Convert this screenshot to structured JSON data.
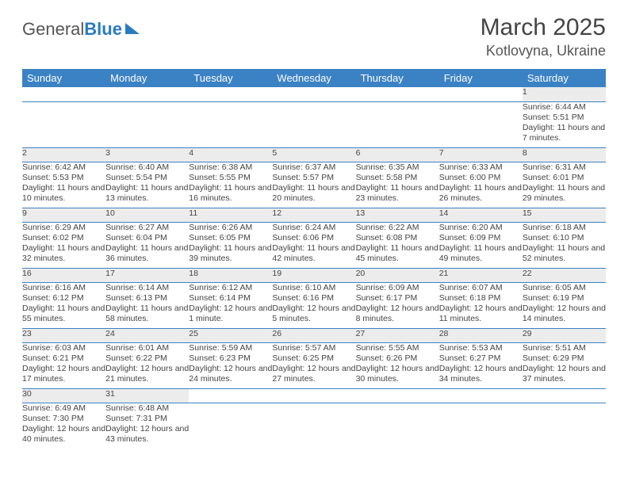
{
  "logo": {
    "text1": "General",
    "text2": "Blue"
  },
  "title": "March 2025",
  "location": "Kotlovyna, Ukraine",
  "headers": [
    "Sunday",
    "Monday",
    "Tuesday",
    "Wednesday",
    "Thursday",
    "Friday",
    "Saturday"
  ],
  "colors": {
    "header_bg": "#3b82c4",
    "header_fg": "#ffffff",
    "daynum_bg": "#ececec",
    "border": "#3b82c4",
    "text": "#444444",
    "logo_blue": "#2a7bbf"
  },
  "weeks": [
    [
      null,
      null,
      null,
      null,
      null,
      null,
      {
        "n": "1",
        "sr": "6:44 AM",
        "ss": "5:51 PM",
        "dl": "11 hours and 7 minutes."
      }
    ],
    [
      {
        "n": "2",
        "sr": "6:42 AM",
        "ss": "5:53 PM",
        "dl": "11 hours and 10 minutes."
      },
      {
        "n": "3",
        "sr": "6:40 AM",
        "ss": "5:54 PM",
        "dl": "11 hours and 13 minutes."
      },
      {
        "n": "4",
        "sr": "6:38 AM",
        "ss": "5:55 PM",
        "dl": "11 hours and 16 minutes."
      },
      {
        "n": "5",
        "sr": "6:37 AM",
        "ss": "5:57 PM",
        "dl": "11 hours and 20 minutes."
      },
      {
        "n": "6",
        "sr": "6:35 AM",
        "ss": "5:58 PM",
        "dl": "11 hours and 23 minutes."
      },
      {
        "n": "7",
        "sr": "6:33 AM",
        "ss": "6:00 PM",
        "dl": "11 hours and 26 minutes."
      },
      {
        "n": "8",
        "sr": "6:31 AM",
        "ss": "6:01 PM",
        "dl": "11 hours and 29 minutes."
      }
    ],
    [
      {
        "n": "9",
        "sr": "6:29 AM",
        "ss": "6:02 PM",
        "dl": "11 hours and 32 minutes."
      },
      {
        "n": "10",
        "sr": "6:27 AM",
        "ss": "6:04 PM",
        "dl": "11 hours and 36 minutes."
      },
      {
        "n": "11",
        "sr": "6:26 AM",
        "ss": "6:05 PM",
        "dl": "11 hours and 39 minutes."
      },
      {
        "n": "12",
        "sr": "6:24 AM",
        "ss": "6:06 PM",
        "dl": "11 hours and 42 minutes."
      },
      {
        "n": "13",
        "sr": "6:22 AM",
        "ss": "6:08 PM",
        "dl": "11 hours and 45 minutes."
      },
      {
        "n": "14",
        "sr": "6:20 AM",
        "ss": "6:09 PM",
        "dl": "11 hours and 49 minutes."
      },
      {
        "n": "15",
        "sr": "6:18 AM",
        "ss": "6:10 PM",
        "dl": "11 hours and 52 minutes."
      }
    ],
    [
      {
        "n": "16",
        "sr": "6:16 AM",
        "ss": "6:12 PM",
        "dl": "11 hours and 55 minutes."
      },
      {
        "n": "17",
        "sr": "6:14 AM",
        "ss": "6:13 PM",
        "dl": "11 hours and 58 minutes."
      },
      {
        "n": "18",
        "sr": "6:12 AM",
        "ss": "6:14 PM",
        "dl": "12 hours and 1 minute."
      },
      {
        "n": "19",
        "sr": "6:10 AM",
        "ss": "6:16 PM",
        "dl": "12 hours and 5 minutes."
      },
      {
        "n": "20",
        "sr": "6:09 AM",
        "ss": "6:17 PM",
        "dl": "12 hours and 8 minutes."
      },
      {
        "n": "21",
        "sr": "6:07 AM",
        "ss": "6:18 PM",
        "dl": "12 hours and 11 minutes."
      },
      {
        "n": "22",
        "sr": "6:05 AM",
        "ss": "6:19 PM",
        "dl": "12 hours and 14 minutes."
      }
    ],
    [
      {
        "n": "23",
        "sr": "6:03 AM",
        "ss": "6:21 PM",
        "dl": "12 hours and 17 minutes."
      },
      {
        "n": "24",
        "sr": "6:01 AM",
        "ss": "6:22 PM",
        "dl": "12 hours and 21 minutes."
      },
      {
        "n": "25",
        "sr": "5:59 AM",
        "ss": "6:23 PM",
        "dl": "12 hours and 24 minutes."
      },
      {
        "n": "26",
        "sr": "5:57 AM",
        "ss": "6:25 PM",
        "dl": "12 hours and 27 minutes."
      },
      {
        "n": "27",
        "sr": "5:55 AM",
        "ss": "6:26 PM",
        "dl": "12 hours and 30 minutes."
      },
      {
        "n": "28",
        "sr": "5:53 AM",
        "ss": "6:27 PM",
        "dl": "12 hours and 34 minutes."
      },
      {
        "n": "29",
        "sr": "5:51 AM",
        "ss": "6:29 PM",
        "dl": "12 hours and 37 minutes."
      }
    ],
    [
      {
        "n": "30",
        "sr": "6:49 AM",
        "ss": "7:30 PM",
        "dl": "12 hours and 40 minutes."
      },
      {
        "n": "31",
        "sr": "6:48 AM",
        "ss": "7:31 PM",
        "dl": "12 hours and 43 minutes."
      },
      null,
      null,
      null,
      null,
      null
    ]
  ],
  "labels": {
    "sunrise": "Sunrise: ",
    "sunset": "Sunset: ",
    "daylight": "Daylight: "
  }
}
